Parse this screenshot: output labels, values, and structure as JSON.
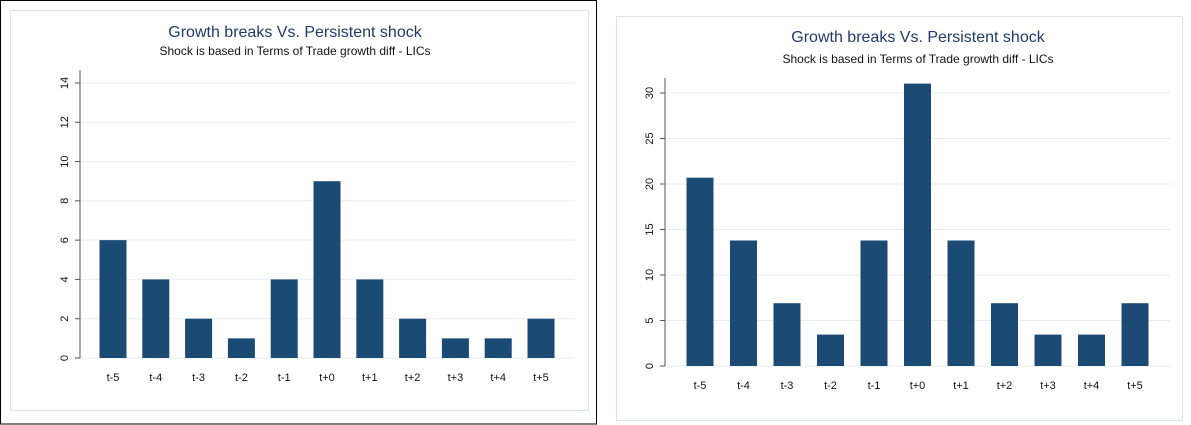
{
  "chart_data": [
    {
      "type": "bar",
      "title": "Growth breaks  Vs. Persistent shock",
      "subtitle": "Shock is based in Terms of Trade growth diff - LICs",
      "categories": [
        "t-5",
        "t-4",
        "t-3",
        "t-2",
        "t-1",
        "t+0",
        "t+1",
        "t+2",
        "t+3",
        "t+4",
        "t+5"
      ],
      "values": [
        6,
        4,
        2,
        1,
        4,
        9,
        4,
        2,
        1,
        1,
        2
      ],
      "color": "#1b4a74",
      "ylim": [
        0,
        14
      ],
      "yticks": [
        0,
        2,
        4,
        6,
        8,
        10,
        12,
        14
      ],
      "grid": true
    },
    {
      "type": "bar",
      "title": "Growth breaks  Vs. Persistent shock",
      "subtitle": "Shock is based in Terms of Trade growth diff - LICs",
      "categories": [
        "t-5",
        "t-4",
        "t-3",
        "t-2",
        "t-1",
        "t+0",
        "t+1",
        "t+2",
        "t+3",
        "t+4",
        "t+5"
      ],
      "values": [
        20.69,
        13.79,
        6.9,
        3.45,
        13.79,
        31.03,
        13.79,
        6.9,
        3.45,
        3.45,
        6.9
      ],
      "color": "#1b4a74",
      "ylim": [
        0,
        30
      ],
      "yticks": [
        0,
        5,
        10,
        15,
        20,
        25,
        30
      ],
      "grid": true
    }
  ]
}
